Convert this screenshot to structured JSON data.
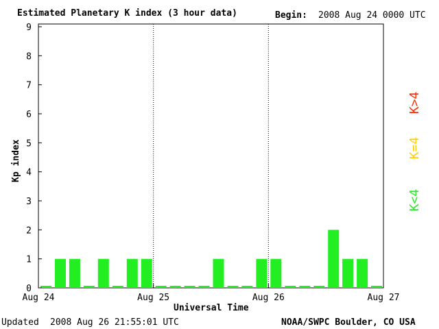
{
  "header": {
    "title": "Estimated Planetary K index (3 hour data)",
    "begin_label": "Begin:",
    "begin_value": "2008 Aug 24 0000 UTC"
  },
  "footer": {
    "updated_label": "Updated",
    "updated_value": "2008 Aug 26 21:55:01 UTC",
    "credit": "NOAA/SWPC Boulder, CO USA"
  },
  "legend": [
    {
      "text": "K>4",
      "color": "#ff2a00"
    },
    {
      "text": "K=4",
      "color": "#ffd000"
    },
    {
      "text": "K<4",
      "color": "#22ee22"
    }
  ],
  "chart_data": {
    "type": "bar",
    "xlabel": "Universal Time",
    "ylabel": "Kp index",
    "ylim": [
      0,
      9
    ],
    "yticks": [
      "0",
      "1",
      "2",
      "3",
      "4",
      "5",
      "6",
      "7",
      "8",
      "9"
    ],
    "xticks": [
      "Aug 24",
      "Aug 25",
      "Aug 26",
      "Aug 27"
    ],
    "day_dividers": [
      "Aug 25",
      "Aug 26"
    ],
    "bar_color": "#22ee22",
    "values": [
      0,
      1,
      1,
      0,
      1,
      0,
      1,
      1,
      0,
      0,
      0,
      0,
      1,
      0,
      0,
      1,
      1,
      0,
      0,
      0,
      2,
      1,
      1,
      0
    ]
  }
}
